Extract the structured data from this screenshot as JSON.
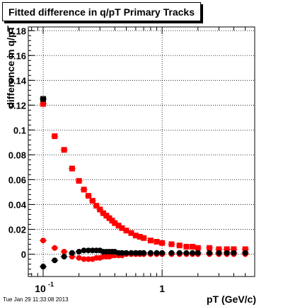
{
  "chart_data": {
    "type": "scatter",
    "title": "Fitted difference in q/pT  Primary Tracks",
    "xlabel": "pT (GeV/c)",
    "ylabel": "difference in q/pT",
    "xscale": "log",
    "xlim": [
      0.075,
      6.0
    ],
    "ylim": [
      -0.018,
      0.183
    ],
    "yticks": [
      0,
      0.02,
      0.04,
      0.06,
      0.08,
      0.1,
      0.12,
      0.14,
      0.16,
      0.18
    ],
    "ytick_labels": [
      "0",
      "0.02",
      "0.04",
      "0.06",
      "0.08",
      "0.1",
      "0.12",
      "0.14",
      "0.16",
      "0.18"
    ],
    "xtick_labels": [
      {
        "value": 0.1,
        "label": "10",
        "sup": "-1"
      },
      {
        "value": 1,
        "label": "1",
        "sup": ""
      }
    ],
    "grid": true,
    "series": [
      {
        "color": "#ff0000",
        "marker": "square",
        "x": [
          0.1,
          0.125,
          0.15,
          0.175,
          0.2,
          0.22,
          0.24,
          0.26,
          0.28,
          0.3,
          0.32,
          0.34,
          0.36,
          0.38,
          0.4,
          0.43,
          0.46,
          0.5,
          0.55,
          0.6,
          0.65,
          0.7,
          0.8,
          0.9,
          1.0,
          1.2,
          1.4,
          1.6,
          1.8,
          2.0,
          2.5,
          3.0,
          3.5,
          4.0,
          5.0
        ],
        "y": [
          0.121,
          0.095,
          0.084,
          0.069,
          0.059,
          0.052,
          0.047,
          0.043,
          0.039,
          0.036,
          0.033,
          0.031,
          0.029,
          0.027,
          0.025,
          0.023,
          0.021,
          0.019,
          0.017,
          0.015,
          0.014,
          0.013,
          0.011,
          0.01,
          0.009,
          0.008,
          0.007,
          0.006,
          0.006,
          0.005,
          0.005,
          0.004,
          0.004,
          0.004,
          0.004
        ]
      },
      {
        "color": "#ff0000",
        "marker": "circle",
        "x": [
          0.1,
          0.125,
          0.15,
          0.175,
          0.2,
          0.22,
          0.24,
          0.26,
          0.28,
          0.3,
          0.32,
          0.34,
          0.36,
          0.38,
          0.4,
          0.43,
          0.46,
          0.5,
          0.55,
          0.6,
          0.65,
          0.7,
          0.8,
          0.9,
          1.0,
          1.2,
          1.4,
          1.6,
          1.8,
          2.0,
          2.5,
          3.0,
          3.5,
          4.0,
          5.0
        ],
        "y": [
          0.011,
          0.005,
          0.002,
          -0.002,
          -0.003,
          -0.004,
          -0.004,
          -0.004,
          -0.003,
          -0.003,
          -0.002,
          -0.002,
          -0.002,
          -0.001,
          -0.001,
          -0.001,
          -0.001,
          0.0,
          0.0,
          0.0,
          0.0,
          0.0,
          0.0,
          0.0,
          0.0,
          0.0,
          0.0,
          0.0,
          0.0,
          0.0,
          0.0,
          0.0,
          0.0,
          0.0,
          0.0
        ]
      },
      {
        "color": "#000000",
        "marker": "square",
        "x": [
          0.1
        ],
        "y": [
          0.125
        ]
      },
      {
        "color": "#000000",
        "marker": "circle",
        "x": [
          0.1,
          0.125,
          0.15,
          0.175,
          0.2,
          0.22,
          0.24,
          0.26,
          0.28,
          0.3,
          0.32,
          0.34,
          0.36,
          0.38,
          0.4,
          0.43,
          0.46,
          0.5,
          0.55,
          0.6,
          0.65,
          0.7,
          0.8,
          0.9,
          1.0,
          1.2,
          1.4,
          1.6,
          1.8,
          2.0,
          2.5,
          3.0,
          3.5,
          4.0,
          5.0
        ],
        "y": [
          -0.01,
          -0.005,
          -0.002,
          0.001,
          0.002,
          0.003,
          0.003,
          0.003,
          0.003,
          0.003,
          0.002,
          0.002,
          0.002,
          0.002,
          0.002,
          0.001,
          0.001,
          0.001,
          0.001,
          0.001,
          0.001,
          0.001,
          0.001,
          0.001,
          0.001,
          0.001,
          0.001,
          0.001,
          0.001,
          0.001,
          0.001,
          0.001,
          0.001,
          0.001,
          0.001
        ]
      }
    ]
  },
  "timestamp": "Tue Jan 29 11:33:08 2013"
}
